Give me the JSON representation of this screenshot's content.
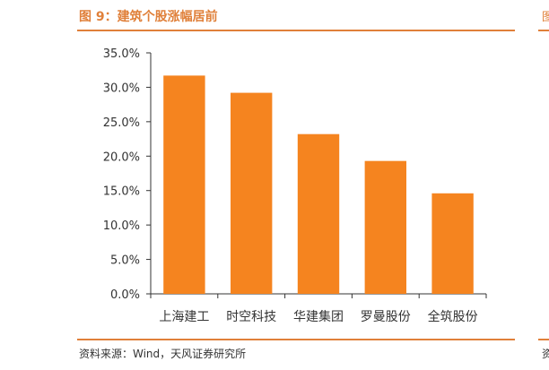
{
  "figure": {
    "title": "图 9：建筑个股涨幅居前",
    "source": "资料来源：Wind，天风证券研究所",
    "clipped_left_glyph": "图",
    "clipped_bottom_glyph": "资"
  },
  "colors": {
    "bar": "#f5841f",
    "accent": "#e0803a",
    "axis": "#333333"
  },
  "chart_data": {
    "type": "bar",
    "title": "",
    "xlabel": "",
    "ylabel": "",
    "categories": [
      "上海建工",
      "时空科技",
      "华建集团",
      "罗曼股份",
      "全筑股份"
    ],
    "values": [
      31.7,
      29.2,
      23.2,
      19.3,
      14.6
    ],
    "ylim": [
      0,
      35
    ],
    "yticks": [
      "0.0%",
      "5.0%",
      "10.0%",
      "15.0%",
      "20.0%",
      "25.0%",
      "30.0%",
      "35.0%"
    ],
    "grid": false,
    "legend": "none"
  }
}
